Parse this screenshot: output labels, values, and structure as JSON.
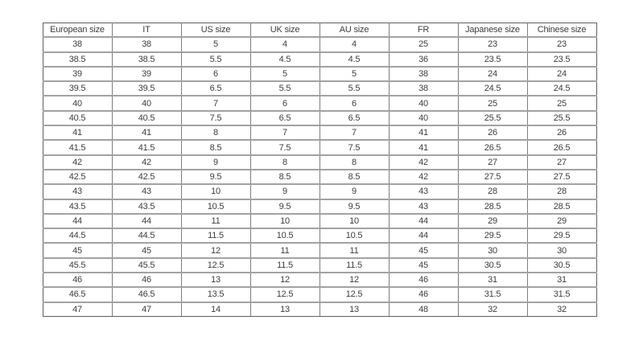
{
  "page": {
    "background_color": "#ffffff",
    "text_color": "#3c3c3c",
    "grid_color": "#a2a2a2"
  },
  "table": {
    "headers": [
      "European size",
      "IT",
      "US size",
      "UK size",
      "AU size",
      "FR",
      "Japanese size",
      "Chinese size"
    ],
    "rows": [
      [
        "38",
        "38",
        "5",
        "4",
        "4",
        "25",
        "23",
        "23"
      ],
      [
        "38.5",
        "38.5",
        "5.5",
        "4.5",
        "4.5",
        "36",
        "23.5",
        "23.5"
      ],
      [
        "39",
        "39",
        "6",
        "5",
        "5",
        "38",
        "24",
        "24"
      ],
      [
        "39.5",
        "39.5",
        "6.5",
        "5.5",
        "5.5",
        "38",
        "24.5",
        "24.5"
      ],
      [
        "40",
        "40",
        "7",
        "6",
        "6",
        "40",
        "25",
        "25"
      ],
      [
        "40.5",
        "40.5",
        "7.5",
        "6.5",
        "6.5",
        "40",
        "25.5",
        "25.5"
      ],
      [
        "41",
        "41",
        "8",
        "7",
        "7",
        "41",
        "26",
        "26"
      ],
      [
        "41.5",
        "41.5",
        "8.5",
        "7.5",
        "7.5",
        "41",
        "26.5",
        "26.5"
      ],
      [
        "42",
        "42",
        "9",
        "8",
        "8",
        "42",
        "27",
        "27"
      ],
      [
        "42.5",
        "42.5",
        "9.5",
        "8.5",
        "8.5",
        "42",
        "27.5",
        "27.5"
      ],
      [
        "43",
        "43",
        "10",
        "9",
        "9",
        "43",
        "28",
        "28"
      ],
      [
        "43.5",
        "43.5",
        "10.5",
        "9.5",
        "9.5",
        "43",
        "28.5",
        "28.5"
      ],
      [
        "44",
        "44",
        "11",
        "10",
        "10",
        "44",
        "29",
        "29"
      ],
      [
        "44.5",
        "44.5",
        "11.5",
        "10.5",
        "10.5",
        "44",
        "29.5",
        "29.5"
      ],
      [
        "45",
        "45",
        "12",
        "11",
        "11",
        "45",
        "30",
        "30"
      ],
      [
        "45.5",
        "45.5",
        "12.5",
        "11.5",
        "11.5",
        "45",
        "30.5",
        "30.5"
      ],
      [
        "46",
        "46",
        "13",
        "12",
        "12",
        "46",
        "31",
        "31"
      ],
      [
        "46.5",
        "46.5",
        "13.5",
        "12.5",
        "12.5",
        "46",
        "31.5",
        "31.5"
      ],
      [
        "47",
        "47",
        "14",
        "13",
        "13",
        "48",
        "32",
        "32"
      ]
    ]
  }
}
